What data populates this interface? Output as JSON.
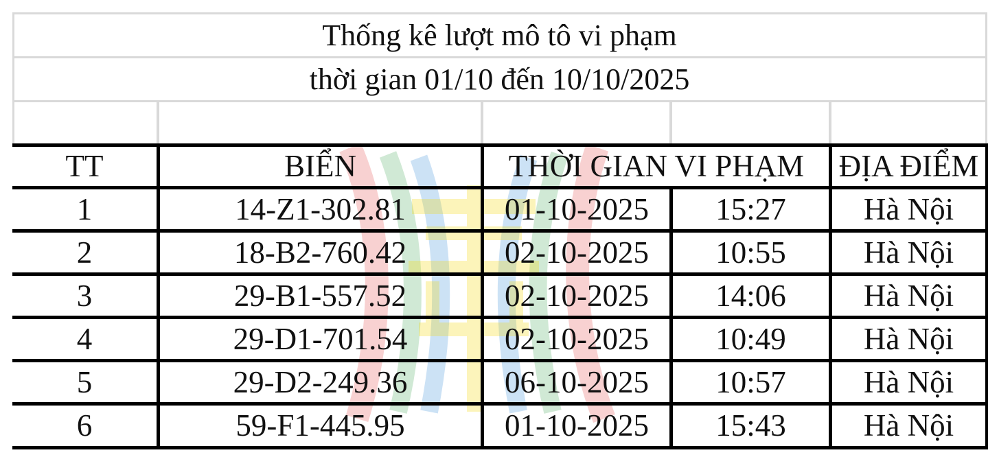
{
  "title": {
    "line1": "Thống kê lượt mô tô vi phạm",
    "line2": "thời gian 01/10 đến 10/10/2025"
  },
  "table": {
    "headers": {
      "tt": "TT",
      "plate": "BIỂN",
      "time": "THỜI GIAN VI PHẠM",
      "location": "ĐỊA ĐIỂM"
    },
    "rows": [
      {
        "tt": "1",
        "plate": "14-Z1-302.81",
        "date": "01-10-2025",
        "time": "15:27",
        "location": "Hà Nội"
      },
      {
        "tt": "2",
        "plate": "18-B2-760.42",
        "date": "02-10-2025",
        "time": "10:55",
        "location": "Hà Nội"
      },
      {
        "tt": "3",
        "plate": "29-B1-557.52",
        "date": "02-10-2025",
        "time": "14:06",
        "location": "Hà Nội"
      },
      {
        "tt": "4",
        "plate": "29-D1-701.54",
        "date": "02-10-2025",
        "time": "10:49",
        "location": "Hà Nội"
      },
      {
        "tt": "5",
        "plate": "29-D2-249.36",
        "date": "06-10-2025",
        "time": "10:57",
        "location": "Hà Nội"
      },
      {
        "tt": "6",
        "plate": "59-F1-445.95",
        "date": "01-10-2025",
        "time": "15:43",
        "location": "Hà Nội"
      }
    ]
  },
  "watermark": {
    "icon": "hanoi-emblem-icon",
    "colors": [
      "#e03131",
      "#2f9e44",
      "#1c7ed6",
      "#f5d90a"
    ]
  }
}
